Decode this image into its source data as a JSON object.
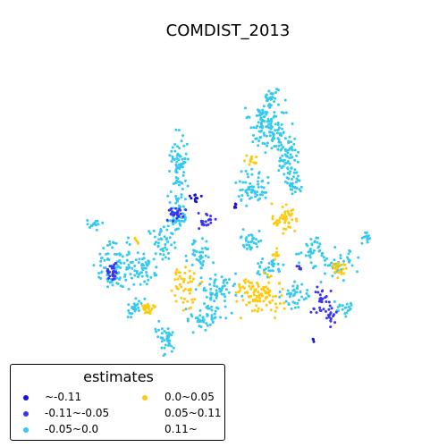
{
  "title": "COMDIST_2013",
  "legend": {
    "title": "estimates",
    "items": [
      {
        "label": "~-0.11",
        "color": "#1a0fd6"
      },
      {
        "label": "-0.11~-0.05",
        "color": "#3a35f0"
      },
      {
        "label": "-0.05~0.0",
        "color": "#34c9ef"
      },
      {
        "label": "0.0~0.05",
        "color": "#ffc90e"
      },
      {
        "label": "0.05~0.11",
        "color": ""
      },
      {
        "label": "0.11~",
        "color": ""
      }
    ]
  }
}
